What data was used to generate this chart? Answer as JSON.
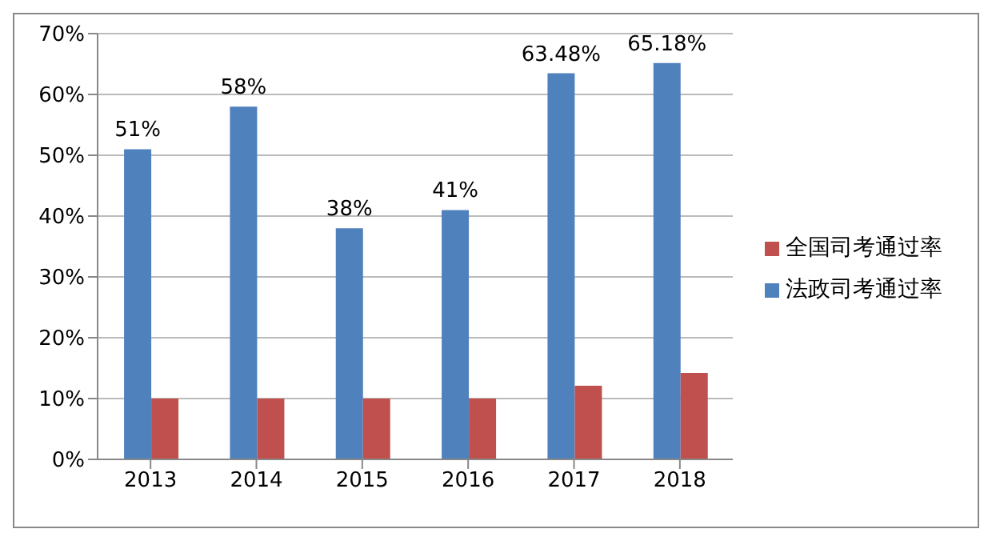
{
  "chart_data": {
    "type": "bar",
    "categories": [
      "2013",
      "2014",
      "2015",
      "2016",
      "2017",
      "2018"
    ],
    "series": [
      {
        "name": "法政司考通过率",
        "color": "#4f81bd",
        "values": [
          51,
          58,
          38,
          41,
          63.48,
          65.18
        ],
        "value_labels": [
          "51%",
          "58%",
          "38%",
          "41%",
          "63.48%",
          "65.18%"
        ]
      },
      {
        "name": "全国司考通过率",
        "color": "#c0504d",
        "values": [
          10,
          10,
          10,
          10,
          12.1,
          14.2
        ]
      }
    ],
    "ylim": [
      0,
      70
    ],
    "yticks": [
      {
        "value": 0,
        "label": "0%"
      },
      {
        "value": 10,
        "label": "10%"
      },
      {
        "value": 20,
        "label": "20%"
      },
      {
        "value": 30,
        "label": "30%"
      },
      {
        "value": 40,
        "label": "40%"
      },
      {
        "value": 50,
        "label": "50%"
      },
      {
        "value": 60,
        "label": "60%"
      },
      {
        "value": 70,
        "label": "70%"
      }
    ],
    "grid": "y",
    "legend": "right"
  }
}
